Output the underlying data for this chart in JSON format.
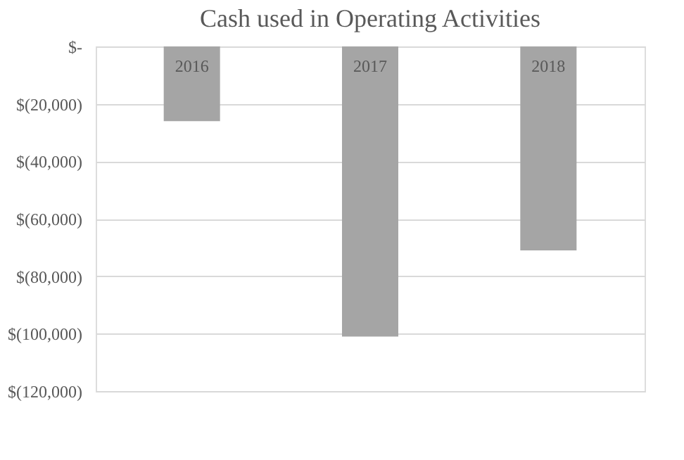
{
  "chart_data": {
    "type": "bar",
    "title": "Cash used in Operating Activities",
    "categories": [
      "2016",
      "2017",
      "2018"
    ],
    "values": [
      -26000,
      -101000,
      -71000
    ],
    "color": "#a5a5a5",
    "ylim": [
      -120000,
      0
    ],
    "yticks": [
      {
        "value": 0,
        "label": "$-"
      },
      {
        "value": -20000,
        "label": "$(20,000)"
      },
      {
        "value": -40000,
        "label": "$(40,000)"
      },
      {
        "value": -60000,
        "label": "$(60,000)"
      },
      {
        "value": -80000,
        "label": "$(80,000)"
      },
      {
        "value": -100000,
        "label": "$(100,000)"
      },
      {
        "value": -120000,
        "label": "$(120,000)"
      }
    ],
    "grid": "y"
  }
}
